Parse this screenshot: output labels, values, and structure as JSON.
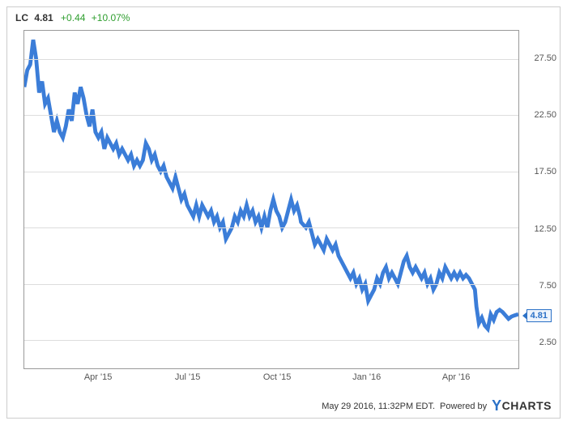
{
  "header": {
    "ticker": "LC",
    "price": "4.81",
    "change": "+0.44",
    "pct": "+10.07%"
  },
  "chart": {
    "type": "line",
    "line_color": "#3b7dd8",
    "line_width": 1.2,
    "background_color": "#ffffff",
    "grid_color": "#dddddd",
    "border_color": "#999999",
    "ylim": [
      0,
      30
    ],
    "yticks": [
      2.5,
      7.5,
      12.5,
      17.5,
      22.5,
      27.5
    ],
    "ytick_labels": [
      "2.50",
      "7.50",
      "12.50",
      "17.50",
      "22.50",
      "27.50"
    ],
    "xticks_pos": [
      0.15,
      0.33,
      0.51,
      0.69,
      0.87
    ],
    "xtick_labels": [
      "Apr '15",
      "Jul '15",
      "Oct '15",
      "Jan '16",
      "Apr '16"
    ],
    "current_value_tag": "4.81",
    "series": [
      [
        0.0,
        25.0
      ],
      [
        0.006,
        26.5
      ],
      [
        0.012,
        27.0
      ],
      [
        0.018,
        29.2
      ],
      [
        0.024,
        27.5
      ],
      [
        0.03,
        24.5
      ],
      [
        0.036,
        25.5
      ],
      [
        0.042,
        23.5
      ],
      [
        0.048,
        24.0
      ],
      [
        0.054,
        22.5
      ],
      [
        0.06,
        21.0
      ],
      [
        0.066,
        22.0
      ],
      [
        0.072,
        21.0
      ],
      [
        0.078,
        20.5
      ],
      [
        0.084,
        21.5
      ],
      [
        0.09,
        23.0
      ],
      [
        0.096,
        22.0
      ],
      [
        0.102,
        24.5
      ],
      [
        0.108,
        23.5
      ],
      [
        0.114,
        25.0
      ],
      [
        0.12,
        24.0
      ],
      [
        0.126,
        22.5
      ],
      [
        0.132,
        21.5
      ],
      [
        0.138,
        23.0
      ],
      [
        0.144,
        21.0
      ],
      [
        0.15,
        20.5
      ],
      [
        0.156,
        21.0
      ],
      [
        0.162,
        19.5
      ],
      [
        0.168,
        20.5
      ],
      [
        0.174,
        20.0
      ],
      [
        0.18,
        19.5
      ],
      [
        0.186,
        20.0
      ],
      [
        0.192,
        19.0
      ],
      [
        0.198,
        19.5
      ],
      [
        0.204,
        19.0
      ],
      [
        0.21,
        18.5
      ],
      [
        0.216,
        19.0
      ],
      [
        0.222,
        18.0
      ],
      [
        0.228,
        18.5
      ],
      [
        0.234,
        18.0
      ],
      [
        0.24,
        18.5
      ],
      [
        0.246,
        20.0
      ],
      [
        0.252,
        19.5
      ],
      [
        0.258,
        18.5
      ],
      [
        0.264,
        19.0
      ],
      [
        0.27,
        18.0
      ],
      [
        0.276,
        17.5
      ],
      [
        0.282,
        18.0
      ],
      [
        0.288,
        17.0
      ],
      [
        0.294,
        16.5
      ],
      [
        0.3,
        16.0
      ],
      [
        0.306,
        17.0
      ],
      [
        0.312,
        16.0
      ],
      [
        0.318,
        15.0
      ],
      [
        0.324,
        15.5
      ],
      [
        0.33,
        14.5
      ],
      [
        0.336,
        14.0
      ],
      [
        0.342,
        13.5
      ],
      [
        0.348,
        14.5
      ],
      [
        0.354,
        13.5
      ],
      [
        0.36,
        14.5
      ],
      [
        0.366,
        14.0
      ],
      [
        0.372,
        13.5
      ],
      [
        0.378,
        14.0
      ],
      [
        0.384,
        13.0
      ],
      [
        0.39,
        13.5
      ],
      [
        0.396,
        12.5
      ],
      [
        0.402,
        13.0
      ],
      [
        0.408,
        11.5
      ],
      [
        0.414,
        12.0
      ],
      [
        0.42,
        12.5
      ],
      [
        0.426,
        13.5
      ],
      [
        0.432,
        13.0
      ],
      [
        0.438,
        14.0
      ],
      [
        0.444,
        13.5
      ],
      [
        0.45,
        14.5
      ],
      [
        0.456,
        13.5
      ],
      [
        0.462,
        14.0
      ],
      [
        0.468,
        13.0
      ],
      [
        0.474,
        13.5
      ],
      [
        0.48,
        12.5
      ],
      [
        0.486,
        13.5
      ],
      [
        0.492,
        12.5
      ],
      [
        0.498,
        14.0
      ],
      [
        0.504,
        15.0
      ],
      [
        0.51,
        14.0
      ],
      [
        0.516,
        13.5
      ],
      [
        0.522,
        12.5
      ],
      [
        0.528,
        13.0
      ],
      [
        0.534,
        14.0
      ],
      [
        0.54,
        15.0
      ],
      [
        0.546,
        14.0
      ],
      [
        0.552,
        14.5
      ],
      [
        0.558,
        13.5
      ],
      [
        0.56,
        13.0
      ],
      [
        0.57,
        12.5
      ],
      [
        0.576,
        13.0
      ],
      [
        0.582,
        12.0
      ],
      [
        0.588,
        11.0
      ],
      [
        0.594,
        11.5
      ],
      [
        0.6,
        11.0
      ],
      [
        0.606,
        10.5
      ],
      [
        0.612,
        11.5
      ],
      [
        0.618,
        11.0
      ],
      [
        0.624,
        10.5
      ],
      [
        0.63,
        11.0
      ],
      [
        0.636,
        10.0
      ],
      [
        0.642,
        9.5
      ],
      [
        0.648,
        9.0
      ],
      [
        0.654,
        8.5
      ],
      [
        0.66,
        8.0
      ],
      [
        0.666,
        8.5
      ],
      [
        0.672,
        7.5
      ],
      [
        0.678,
        8.0
      ],
      [
        0.684,
        7.0
      ],
      [
        0.69,
        7.5
      ],
      [
        0.696,
        6.0
      ],
      [
        0.702,
        6.5
      ],
      [
        0.708,
        7.0
      ],
      [
        0.714,
        8.0
      ],
      [
        0.72,
        7.5
      ],
      [
        0.726,
        8.5
      ],
      [
        0.732,
        9.0
      ],
      [
        0.738,
        8.0
      ],
      [
        0.744,
        8.5
      ],
      [
        0.75,
        8.0
      ],
      [
        0.756,
        7.5
      ],
      [
        0.762,
        8.5
      ],
      [
        0.768,
        9.5
      ],
      [
        0.774,
        10.0
      ],
      [
        0.78,
        9.0
      ],
      [
        0.786,
        8.5
      ],
      [
        0.792,
        9.0
      ],
      [
        0.798,
        8.5
      ],
      [
        0.804,
        8.0
      ],
      [
        0.81,
        8.5
      ],
      [
        0.816,
        7.5
      ],
      [
        0.822,
        8.0
      ],
      [
        0.828,
        7.0
      ],
      [
        0.834,
        7.5
      ],
      [
        0.84,
        8.5
      ],
      [
        0.846,
        8.0
      ],
      [
        0.852,
        9.0
      ],
      [
        0.858,
        8.5
      ],
      [
        0.864,
        8.0
      ],
      [
        0.87,
        8.5
      ],
      [
        0.876,
        8.0
      ],
      [
        0.882,
        8.5
      ],
      [
        0.888,
        8.0
      ],
      [
        0.894,
        8.3
      ],
      [
        0.9,
        8.0
      ],
      [
        0.906,
        7.5
      ],
      [
        0.912,
        7.0
      ],
      [
        0.915,
        5.5
      ],
      [
        0.92,
        4.0
      ],
      [
        0.926,
        4.5
      ],
      [
        0.932,
        3.8
      ],
      [
        0.938,
        3.5
      ],
      [
        0.944,
        4.8
      ],
      [
        0.95,
        4.3
      ],
      [
        0.956,
        5.0
      ],
      [
        0.962,
        5.2
      ],
      [
        0.968,
        5.0
      ],
      [
        0.974,
        4.7
      ],
      [
        0.98,
        4.4
      ],
      [
        0.986,
        4.6
      ],
      [
        0.992,
        4.7
      ],
      [
        1.0,
        4.81
      ]
    ]
  },
  "footer": {
    "timestamp": "May 29 2016, 11:32PM EDT.",
    "powered": "Powered by",
    "logo_text": "CHARTS"
  },
  "colors": {
    "text": "#333333",
    "positive": "#2e9e2e",
    "accent": "#2b71c7"
  }
}
